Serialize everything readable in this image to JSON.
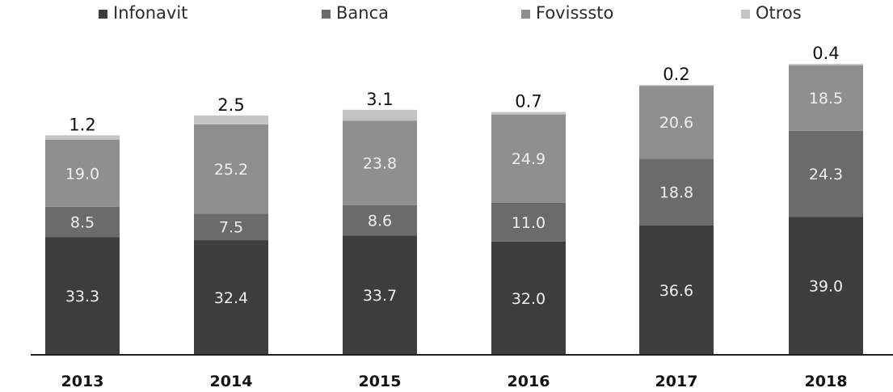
{
  "chart_data": {
    "type": "bar",
    "stacked": true,
    "categories": [
      "2013",
      "2014",
      "2015",
      "2016",
      "2017",
      "2018"
    ],
    "series": [
      {
        "name": "Infonavit",
        "color": "#3d3d3d",
        "values": [
          33.3,
          32.4,
          33.7,
          32.0,
          36.6,
          39.0
        ]
      },
      {
        "name": "Banca",
        "color": "#6b6b6b",
        "values": [
          8.5,
          7.5,
          8.6,
          11.0,
          18.8,
          24.3
        ]
      },
      {
        "name": "Fovissste",
        "color": "#8f8f8f",
        "values": [
          19.0,
          25.2,
          23.8,
          24.9,
          20.6,
          18.5
        ]
      },
      {
        "name": "Otros",
        "color": "#c4c4c4",
        "values": [
          1.2,
          2.5,
          3.1,
          0.7,
          0.2,
          0.4
        ]
      }
    ],
    "legend_labels": [
      "Infonavit",
      "Banca",
      "Fovisssto",
      "Otros"
    ],
    "value_labels": [
      [
        "33.3",
        "32.4",
        "33.7",
        "32.0",
        "36.6",
        "39.0"
      ],
      [
        "8.5",
        "7.5",
        "8.6",
        "11.0",
        "18.8",
        "24.3"
      ],
      [
        "19.0",
        "25.2",
        "23.8",
        "24.9",
        "20.6",
        "18.5"
      ],
      [
        "1.2",
        "2.5",
        "3.1",
        "0.7",
        "0.2",
        "0.4"
      ]
    ],
    "ylim": [
      0,
      85
    ],
    "legend_position": "top",
    "grid": false,
    "title": "",
    "xlabel": "",
    "ylabel": ""
  }
}
